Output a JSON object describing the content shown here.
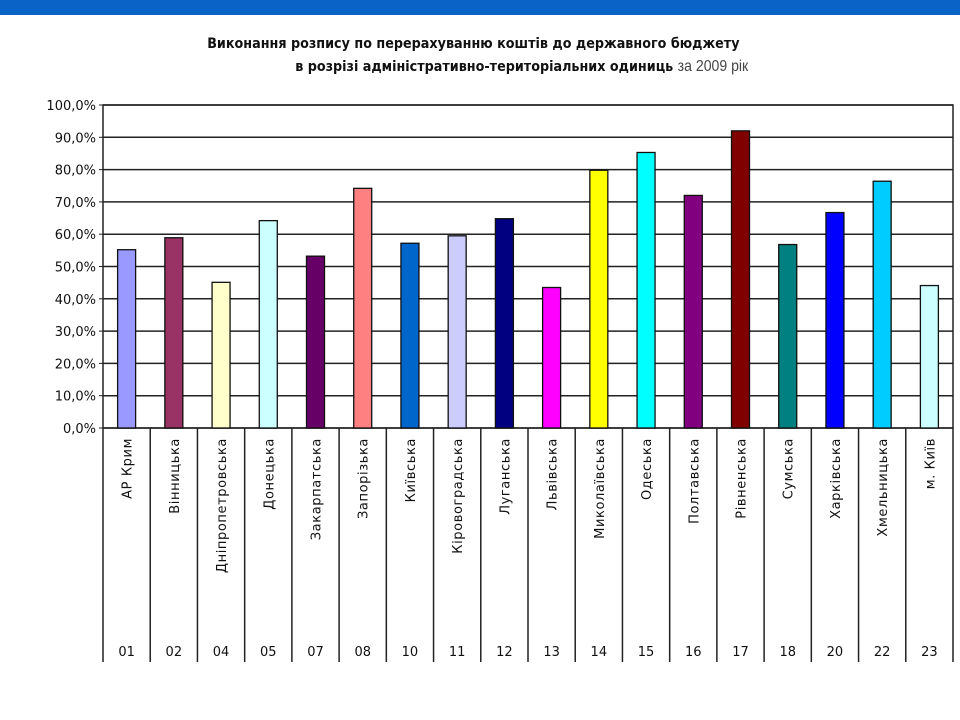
{
  "chart_data": {
    "type": "bar",
    "title_line1": "Виконання розпису по перерахуванню коштів до державного бюджету",
    "title_line2": "в розрізі адміністративно-територіальних одиниць",
    "title_year": "за 2009 рік",
    "xlabel": "",
    "ylabel": "",
    "ylim": [
      0,
      100
    ],
    "grid": true,
    "y_ticks": [
      "0,0%",
      "10,0%",
      "20,0%",
      "30,0%",
      "40,0%",
      "50,0%",
      "60,0%",
      "70,0%",
      "80,0%",
      "90,0%",
      "100,0%"
    ],
    "categories": [
      "АР Крим",
      "Вінницька",
      "Дніпропетровська",
      "Донецька",
      "Закарпатська",
      "Запорізька",
      "Київська",
      "Кіровоградська",
      "Луганська",
      "Львівська",
      "Миколаївська",
      "Одеська",
      "Полтавська",
      "Рівненська",
      "Сумська",
      "Харківська",
      "Хмельницька",
      "м. Київ"
    ],
    "codes": [
      "01",
      "02",
      "04",
      "05",
      "07",
      "08",
      "10",
      "11",
      "12",
      "13",
      "14",
      "15",
      "16",
      "17",
      "18",
      "20",
      "22",
      "23"
    ],
    "values": [
      55.2,
      58.9,
      45.1,
      64.2,
      53.2,
      74.2,
      57.2,
      59.5,
      64.8,
      43.5,
      79.8,
      85.3,
      72.0,
      92.0,
      56.8,
      66.7,
      76.4,
      44.1
    ],
    "colors": [
      "#9999ff",
      "#993366",
      "#ffffcc",
      "#ccffff",
      "#660066",
      "#ff8080",
      "#0066cc",
      "#ccccff",
      "#000080",
      "#ff00ff",
      "#ffff00",
      "#00ffff",
      "#800080",
      "#800000",
      "#008080",
      "#0000ff",
      "#00ccff",
      "#ccffff"
    ]
  },
  "theme": {
    "topbar": "#0a64c8"
  }
}
